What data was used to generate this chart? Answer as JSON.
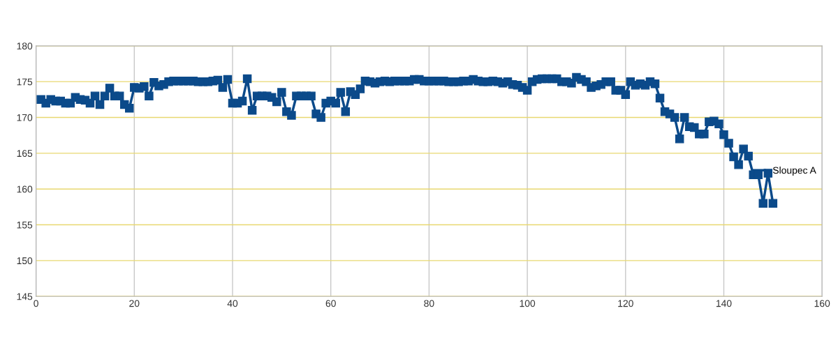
{
  "chart_data": {
    "type": "line",
    "x": [
      1,
      2,
      3,
      4,
      5,
      6,
      7,
      8,
      9,
      10,
      11,
      12,
      13,
      14,
      15,
      16,
      17,
      18,
      19,
      20,
      21,
      22,
      23,
      24,
      25,
      26,
      27,
      28,
      29,
      30,
      31,
      32,
      33,
      34,
      35,
      36,
      37,
      38,
      39,
      40,
      41,
      42,
      43,
      44,
      45,
      46,
      47,
      48,
      49,
      50,
      51,
      52,
      53,
      54,
      55,
      56,
      57,
      58,
      59,
      60,
      61,
      62,
      63,
      64,
      65,
      66,
      67,
      68,
      69,
      70,
      71,
      72,
      73,
      74,
      75,
      76,
      77,
      78,
      79,
      80,
      81,
      82,
      83,
      84,
      85,
      86,
      87,
      88,
      89,
      90,
      91,
      92,
      93,
      94,
      95,
      96,
      97,
      98,
      99,
      100,
      101,
      102,
      103,
      104,
      105,
      106,
      107,
      108,
      109,
      110,
      111,
      112,
      113,
      114,
      115,
      116,
      117,
      118,
      119,
      120,
      121,
      122,
      123,
      124,
      125,
      126,
      127,
      128,
      129,
      130,
      131,
      132,
      133,
      134,
      135,
      136,
      137,
      138,
      139,
      140,
      141,
      142,
      143,
      144,
      145,
      146,
      147,
      148,
      149,
      150
    ],
    "series": [
      {
        "name": "Sloupec A",
        "color": "#0b4a8a",
        "values": [
          172.5,
          172,
          172.5,
          172.3,
          172.3,
          172,
          172,
          172.8,
          172.5,
          172.4,
          172,
          173,
          171.8,
          173,
          174.1,
          173,
          173,
          171.8,
          171.3,
          174.2,
          174.1,
          174.3,
          173,
          174.9,
          174.4,
          174.6,
          175,
          175.1,
          175.1,
          175.1,
          175.1,
          175.1,
          175,
          175,
          175,
          175.1,
          175.2,
          174.2,
          175.3,
          172,
          172,
          172.3,
          175.4,
          171,
          173,
          173,
          173,
          172.8,
          172.2,
          173.5,
          170.8,
          170.3,
          173,
          173,
          173,
          173,
          170.5,
          170,
          172,
          172.3,
          172,
          173.5,
          170.8,
          173.6,
          173.2,
          174,
          175.1,
          175,
          174.8,
          175,
          175.1,
          175,
          175.1,
          175.1,
          175.1,
          175.1,
          175.3,
          175.3,
          175.1,
          175.1,
          175.1,
          175.1,
          175.1,
          175,
          175,
          175,
          175.1,
          175.1,
          175.3,
          175.1,
          175,
          175,
          175.1,
          175,
          174.8,
          175,
          174.6,
          174.5,
          174.2,
          173.8,
          175,
          175.3,
          175.4,
          175.4,
          175.4,
          175.4,
          175,
          175,
          174.8,
          175.6,
          175.3,
          175,
          174.2,
          174.4,
          174.6,
          175,
          175,
          173.8,
          173.8,
          173.2,
          175,
          174.5,
          174.7,
          174.5,
          175,
          174.7,
          172.7,
          170.8,
          170.5,
          170,
          167,
          170,
          168.7,
          168.6,
          167.7,
          167.7,
          169.4,
          169.5,
          169.1,
          167.6,
          166.4,
          164.5,
          163.4,
          165.6,
          164.6,
          162,
          162,
          158,
          162.2,
          158
        ]
      }
    ],
    "xlim": [
      0,
      160
    ],
    "xticks": [
      0,
      20,
      40,
      60,
      80,
      100,
      120,
      140,
      160
    ],
    "ylim": [
      145,
      180
    ],
    "yticks": [
      145,
      150,
      155,
      160,
      165,
      170,
      175,
      180
    ],
    "grid": true,
    "legend": "right",
    "marker": "square",
    "line_style": "solid"
  }
}
